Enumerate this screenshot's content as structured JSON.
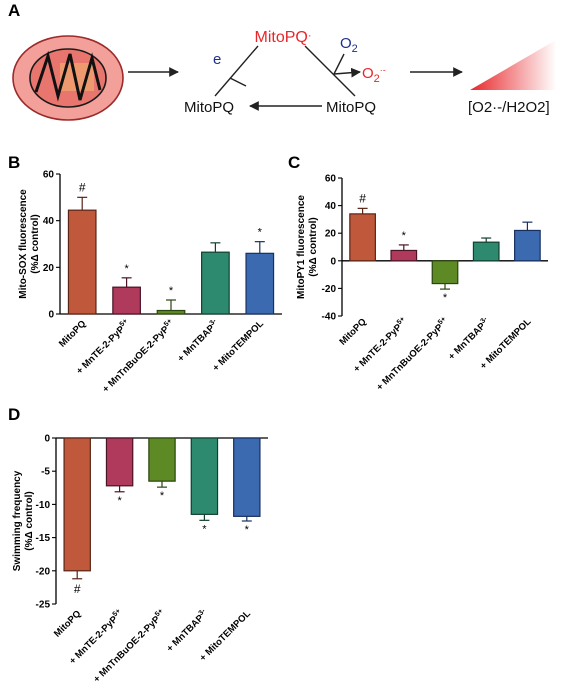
{
  "panels": {
    "A": {
      "letter": "A",
      "mitopq_radical": "MitoPQ",
      "radical_dot": "·",
      "electron": "e",
      "oxygen": "O",
      "oxygen_sub": "2",
      "superoxide": "O",
      "superoxide_sub": "2",
      "superoxide_sup": "·-",
      "mitopq_left": "MitoPQ",
      "mitopq_right": "MitoPQ",
      "ratio_label": "[O2·-/H2O2]"
    },
    "B": {
      "letter": "B"
    },
    "C": {
      "letter": "C"
    },
    "D": {
      "letter": "D"
    }
  },
  "colors": {
    "mitochondrion_fill": "#f4a09a",
    "mitochondrion_stroke": "#9b2a2a",
    "radical_red": "#e8262a",
    "oxygen_blue": "#1e2f8c",
    "bar_mitopq": "#c0583c",
    "bar_mnte": "#b03a5c",
    "bar_mntnbuoe": "#5e8a26",
    "bar_mntbap": "#2e8a6e",
    "bar_mitotempol": "#3c6ab0"
  },
  "chart_data": [
    {
      "panel": "B",
      "type": "bar",
      "ylabel": "Mito-SOX fluorescence\n(%Δ control)",
      "ylim": [
        0,
        60
      ],
      "yticks": [
        "0",
        "20",
        "40",
        "60"
      ],
      "categories": [
        "MitoPQ",
        "+ MnTE-2-PyP5+",
        "+ MnTnBuOE-2-PyP5+",
        "+ MnTBAP3-",
        "+ MitoTEMPOL"
      ],
      "values": [
        44.5,
        11.5,
        1.5,
        26.5,
        26
      ],
      "errors": [
        5.5,
        4,
        4.5,
        4,
        5
      ],
      "markers": [
        "#",
        "*",
        "*",
        "",
        "*"
      ]
    },
    {
      "panel": "C",
      "type": "bar",
      "ylabel": "MitoPY1 fluorescence\n(%Δ control)",
      "ylim": [
        -40,
        60
      ],
      "yticks": [
        "-40",
        "-20",
        "0",
        "20",
        "40",
        "60"
      ],
      "categories": [
        "MitoPQ",
        "+ MnTE-2-PyP5+",
        "+ MnTnBuOE-2-PyP5+",
        "+ MnTBAP3-",
        "+ MitoTEMPOL"
      ],
      "values": [
        34,
        7.5,
        -16.5,
        13.5,
        22
      ],
      "errors": [
        4,
        4,
        4,
        3,
        6
      ],
      "markers": [
        "#",
        "*",
        "*",
        "",
        ""
      ]
    },
    {
      "panel": "D",
      "type": "bar",
      "ylabel": "Swimming frequency\n(%Δ control)",
      "ylim": [
        -25,
        0
      ],
      "yticks": [
        "0",
        "-5",
        "-10",
        "-15",
        "-20",
        "-25"
      ],
      "categories": [
        "MitoPQ",
        "+ MnTE-2-PyP5+",
        "+ MnTnBuOE-2-PyP5+",
        "+ MnTBAP3-",
        "+ MitoTEMPOL"
      ],
      "values": [
        -20,
        -7.2,
        -6.5,
        -11.5,
        -11.8
      ],
      "errors": [
        1.2,
        0.9,
        0.9,
        0.9,
        0.7
      ],
      "markers": [
        "#",
        "*",
        "*",
        "*",
        "*"
      ]
    }
  ]
}
